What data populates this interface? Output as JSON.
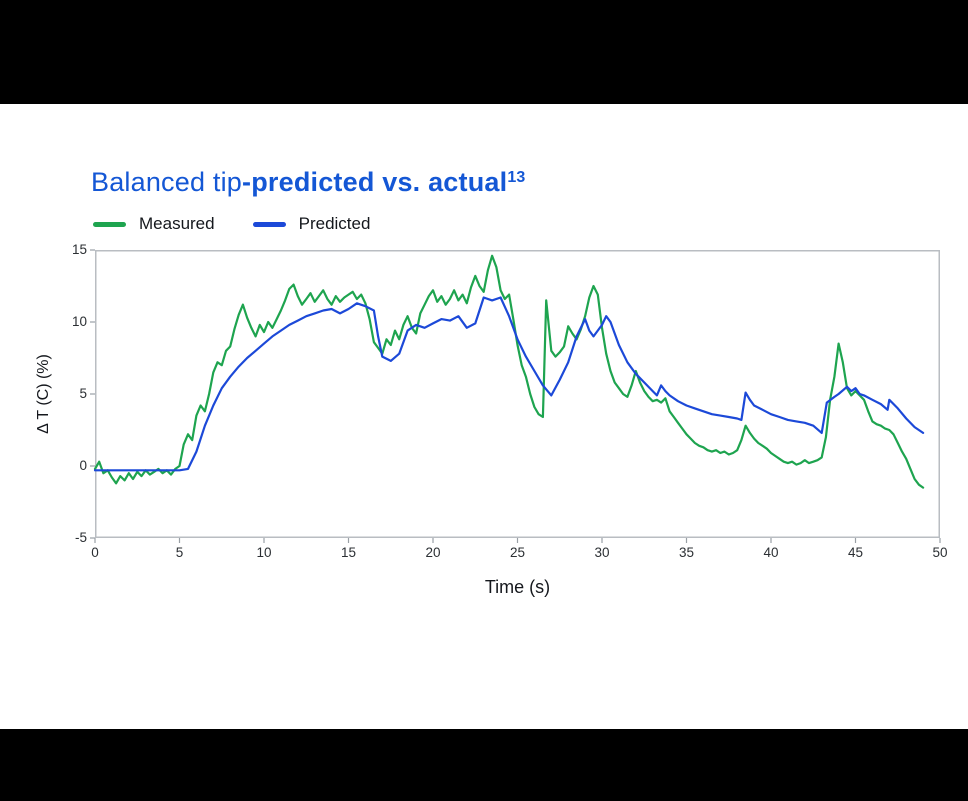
{
  "page": {
    "background": "#ffffff",
    "letterbox_color": "#000000"
  },
  "title": {
    "regular": "Balanced tip",
    "bold": "-predicted vs. actual",
    "superscript": "13",
    "color": "#1457d5"
  },
  "chart_data": {
    "type": "line",
    "title": "Balanced tip-predicted vs. actual13",
    "xlabel": "Time (s)",
    "ylabel": "Δ T (C) (%)",
    "xlim": [
      0,
      50
    ],
    "ylim": [
      -5,
      15
    ],
    "x_ticks": [
      0,
      5,
      10,
      15,
      20,
      25,
      30,
      35,
      40,
      45,
      50
    ],
    "y_ticks": [
      -5,
      0,
      5,
      10,
      15
    ],
    "grid": false,
    "legend_position": "top-left",
    "border_color": "#b9bdc2",
    "series": [
      {
        "name": "Measured",
        "color": "#1ea44f",
        "points": [
          [
            0,
            -0.2
          ],
          [
            0.25,
            0.3
          ],
          [
            0.5,
            -0.5
          ],
          [
            0.75,
            -0.3
          ],
          [
            1,
            -0.8
          ],
          [
            1.25,
            -1.2
          ],
          [
            1.5,
            -0.7
          ],
          [
            1.75,
            -1.0
          ],
          [
            2,
            -0.5
          ],
          [
            2.25,
            -0.9
          ],
          [
            2.5,
            -0.4
          ],
          [
            2.75,
            -0.7
          ],
          [
            3,
            -0.3
          ],
          [
            3.25,
            -0.6
          ],
          [
            3.5,
            -0.4
          ],
          [
            3.75,
            -0.2
          ],
          [
            4,
            -0.5
          ],
          [
            4.25,
            -0.3
          ],
          [
            4.5,
            -0.6
          ],
          [
            4.75,
            -0.2
          ],
          [
            5,
            0.0
          ],
          [
            5.25,
            1.5
          ],
          [
            5.5,
            2.2
          ],
          [
            5.75,
            1.8
          ],
          [
            6,
            3.5
          ],
          [
            6.25,
            4.2
          ],
          [
            6.5,
            3.8
          ],
          [
            6.75,
            5.0
          ],
          [
            7,
            6.5
          ],
          [
            7.25,
            7.2
          ],
          [
            7.5,
            7.0
          ],
          [
            7.75,
            8.0
          ],
          [
            8,
            8.3
          ],
          [
            8.25,
            9.5
          ],
          [
            8.5,
            10.5
          ],
          [
            8.75,
            11.2
          ],
          [
            9,
            10.3
          ],
          [
            9.25,
            9.6
          ],
          [
            9.5,
            9.0
          ],
          [
            9.75,
            9.8
          ],
          [
            10,
            9.3
          ],
          [
            10.25,
            10.0
          ],
          [
            10.5,
            9.6
          ],
          [
            10.75,
            10.2
          ],
          [
            11,
            10.8
          ],
          [
            11.25,
            11.5
          ],
          [
            11.5,
            12.3
          ],
          [
            11.75,
            12.6
          ],
          [
            12,
            11.8
          ],
          [
            12.25,
            11.2
          ],
          [
            12.5,
            11.6
          ],
          [
            12.75,
            12.0
          ],
          [
            13,
            11.4
          ],
          [
            13.25,
            11.8
          ],
          [
            13.5,
            12.2
          ],
          [
            13.75,
            11.6
          ],
          [
            14,
            11.2
          ],
          [
            14.25,
            11.8
          ],
          [
            14.5,
            11.4
          ],
          [
            14.75,
            11.7
          ],
          [
            15,
            11.9
          ],
          [
            15.25,
            12.1
          ],
          [
            15.5,
            11.6
          ],
          [
            15.75,
            11.9
          ],
          [
            16,
            11.3
          ],
          [
            16.25,
            10.2
          ],
          [
            16.5,
            8.6
          ],
          [
            16.75,
            8.2
          ],
          [
            17,
            7.8
          ],
          [
            17.25,
            8.8
          ],
          [
            17.5,
            8.4
          ],
          [
            17.75,
            9.4
          ],
          [
            18,
            8.8
          ],
          [
            18.25,
            9.8
          ],
          [
            18.5,
            10.4
          ],
          [
            18.75,
            9.6
          ],
          [
            19,
            9.2
          ],
          [
            19.25,
            10.6
          ],
          [
            19.5,
            11.2
          ],
          [
            19.75,
            11.8
          ],
          [
            20,
            12.2
          ],
          [
            20.25,
            11.4
          ],
          [
            20.5,
            11.8
          ],
          [
            20.75,
            11.2
          ],
          [
            21,
            11.6
          ],
          [
            21.25,
            12.2
          ],
          [
            21.5,
            11.5
          ],
          [
            21.75,
            11.9
          ],
          [
            22,
            11.3
          ],
          [
            22.25,
            12.4
          ],
          [
            22.5,
            13.2
          ],
          [
            22.75,
            12.5
          ],
          [
            23,
            12.1
          ],
          [
            23.25,
            13.6
          ],
          [
            23.5,
            14.6
          ],
          [
            23.75,
            13.8
          ],
          [
            24,
            12.2
          ],
          [
            24.25,
            11.6
          ],
          [
            24.5,
            11.9
          ],
          [
            24.75,
            10.2
          ],
          [
            25,
            8.4
          ],
          [
            25.25,
            7.0
          ],
          [
            25.5,
            6.2
          ],
          [
            25.75,
            5.0
          ],
          [
            26,
            4.1
          ],
          [
            26.25,
            3.6
          ],
          [
            26.5,
            3.4
          ],
          [
            26.7,
            11.5
          ],
          [
            27,
            8.0
          ],
          [
            27.25,
            7.6
          ],
          [
            27.5,
            7.9
          ],
          [
            27.75,
            8.3
          ],
          [
            28,
            9.7
          ],
          [
            28.25,
            9.2
          ],
          [
            28.5,
            8.8
          ],
          [
            28.75,
            9.5
          ],
          [
            29,
            10.4
          ],
          [
            29.25,
            11.7
          ],
          [
            29.5,
            12.5
          ],
          [
            29.75,
            11.9
          ],
          [
            30,
            9.6
          ],
          [
            30.25,
            7.8
          ],
          [
            30.5,
            6.6
          ],
          [
            30.75,
            5.8
          ],
          [
            31,
            5.4
          ],
          [
            31.25,
            5.0
          ],
          [
            31.5,
            4.8
          ],
          [
            31.75,
            5.6
          ],
          [
            32,
            6.6
          ],
          [
            32.25,
            5.8
          ],
          [
            32.5,
            5.2
          ],
          [
            32.75,
            4.8
          ],
          [
            33,
            4.5
          ],
          [
            33.25,
            4.6
          ],
          [
            33.5,
            4.4
          ],
          [
            33.75,
            4.7
          ],
          [
            34,
            3.8
          ],
          [
            34.25,
            3.4
          ],
          [
            34.5,
            3.0
          ],
          [
            34.75,
            2.6
          ],
          [
            35,
            2.2
          ],
          [
            35.25,
            1.9
          ],
          [
            35.5,
            1.6
          ],
          [
            35.75,
            1.4
          ],
          [
            36,
            1.3
          ],
          [
            36.25,
            1.1
          ],
          [
            36.5,
            1.0
          ],
          [
            36.75,
            1.1
          ],
          [
            37,
            0.9
          ],
          [
            37.25,
            1.0
          ],
          [
            37.5,
            0.8
          ],
          [
            37.75,
            0.9
          ],
          [
            38,
            1.1
          ],
          [
            38.25,
            1.8
          ],
          [
            38.5,
            2.8
          ],
          [
            38.75,
            2.3
          ],
          [
            39,
            1.9
          ],
          [
            39.25,
            1.6
          ],
          [
            39.5,
            1.4
          ],
          [
            39.75,
            1.2
          ],
          [
            40,
            0.9
          ],
          [
            40.25,
            0.7
          ],
          [
            40.5,
            0.5
          ],
          [
            40.75,
            0.3
          ],
          [
            41,
            0.2
          ],
          [
            41.25,
            0.3
          ],
          [
            41.5,
            0.1
          ],
          [
            41.75,
            0.2
          ],
          [
            42,
            0.4
          ],
          [
            42.25,
            0.2
          ],
          [
            42.5,
            0.3
          ],
          [
            42.75,
            0.4
          ],
          [
            43,
            0.6
          ],
          [
            43.25,
            2.0
          ],
          [
            43.5,
            4.6
          ],
          [
            43.75,
            6.2
          ],
          [
            44,
            8.5
          ],
          [
            44.25,
            7.2
          ],
          [
            44.5,
            5.4
          ],
          [
            44.75,
            4.9
          ],
          [
            45,
            5.2
          ],
          [
            45.25,
            4.9
          ],
          [
            45.5,
            4.6
          ],
          [
            45.75,
            3.8
          ],
          [
            46,
            3.1
          ],
          [
            46.25,
            2.9
          ],
          [
            46.5,
            2.8
          ],
          [
            46.75,
            2.6
          ],
          [
            47,
            2.5
          ],
          [
            47.25,
            2.2
          ],
          [
            47.5,
            1.6
          ],
          [
            47.75,
            1.0
          ],
          [
            48,
            0.5
          ],
          [
            48.25,
            -0.2
          ],
          [
            48.5,
            -0.9
          ],
          [
            48.75,
            -1.3
          ],
          [
            49,
            -1.5
          ]
        ]
      },
      {
        "name": "Predicted",
        "color": "#1c49d8",
        "points": [
          [
            0,
            -0.3
          ],
          [
            1,
            -0.3
          ],
          [
            2,
            -0.3
          ],
          [
            3,
            -0.3
          ],
          [
            4,
            -0.3
          ],
          [
            5,
            -0.3
          ],
          [
            5.5,
            -0.2
          ],
          [
            6,
            1.0
          ],
          [
            6.5,
            2.8
          ],
          [
            7,
            4.2
          ],
          [
            7.5,
            5.4
          ],
          [
            8,
            6.2
          ],
          [
            8.5,
            6.9
          ],
          [
            9,
            7.5
          ],
          [
            9.5,
            8.0
          ],
          [
            10,
            8.5
          ],
          [
            10.5,
            9.0
          ],
          [
            11,
            9.4
          ],
          [
            11.5,
            9.8
          ],
          [
            12,
            10.1
          ],
          [
            12.5,
            10.4
          ],
          [
            13,
            10.6
          ],
          [
            13.5,
            10.8
          ],
          [
            14,
            10.9
          ],
          [
            14.5,
            10.6
          ],
          [
            15,
            10.9
          ],
          [
            15.5,
            11.3
          ],
          [
            16,
            11.1
          ],
          [
            16.5,
            10.8
          ],
          [
            16.75,
            9.0
          ],
          [
            17,
            7.6
          ],
          [
            17.5,
            7.3
          ],
          [
            18,
            7.8
          ],
          [
            18.5,
            9.4
          ],
          [
            19,
            9.8
          ],
          [
            19.5,
            9.6
          ],
          [
            20,
            9.9
          ],
          [
            20.5,
            10.2
          ],
          [
            21,
            10.1
          ],
          [
            21.5,
            10.4
          ],
          [
            22,
            9.6
          ],
          [
            22.5,
            9.9
          ],
          [
            23,
            11.7
          ],
          [
            23.5,
            11.5
          ],
          [
            24,
            11.7
          ],
          [
            24.5,
            10.4
          ],
          [
            25,
            8.8
          ],
          [
            25.5,
            7.6
          ],
          [
            26,
            6.6
          ],
          [
            26.5,
            5.6
          ],
          [
            27,
            4.9
          ],
          [
            27.5,
            6.0
          ],
          [
            28,
            7.2
          ],
          [
            28.5,
            9.0
          ],
          [
            29,
            10.2
          ],
          [
            29.25,
            9.4
          ],
          [
            29.5,
            9.0
          ],
          [
            30,
            9.8
          ],
          [
            30.25,
            10.4
          ],
          [
            30.5,
            10.0
          ],
          [
            31,
            8.4
          ],
          [
            31.5,
            7.2
          ],
          [
            32,
            6.4
          ],
          [
            32.5,
            5.8
          ],
          [
            33,
            5.2
          ],
          [
            33.25,
            4.9
          ],
          [
            33.5,
            5.6
          ],
          [
            33.75,
            5.2
          ],
          [
            34,
            4.9
          ],
          [
            34.5,
            4.5
          ],
          [
            35,
            4.2
          ],
          [
            35.5,
            4.0
          ],
          [
            36,
            3.8
          ],
          [
            36.5,
            3.6
          ],
          [
            37,
            3.5
          ],
          [
            37.5,
            3.4
          ],
          [
            38,
            3.3
          ],
          [
            38.25,
            3.2
          ],
          [
            38.5,
            5.1
          ],
          [
            38.75,
            4.6
          ],
          [
            39,
            4.2
          ],
          [
            39.5,
            3.9
          ],
          [
            40,
            3.6
          ],
          [
            40.5,
            3.4
          ],
          [
            41,
            3.2
          ],
          [
            41.5,
            3.1
          ],
          [
            42,
            3.0
          ],
          [
            42.5,
            2.8
          ],
          [
            43,
            2.3
          ],
          [
            43.3,
            4.4
          ],
          [
            43.75,
            4.8
          ],
          [
            44,
            5.0
          ],
          [
            44.5,
            5.5
          ],
          [
            44.75,
            5.2
          ],
          [
            45,
            5.4
          ],
          [
            45.25,
            5.0
          ],
          [
            45.5,
            4.9
          ],
          [
            46,
            4.6
          ],
          [
            46.5,
            4.3
          ],
          [
            46.9,
            3.9
          ],
          [
            47,
            4.6
          ],
          [
            47.5,
            4.0
          ],
          [
            48,
            3.3
          ],
          [
            48.5,
            2.7
          ],
          [
            49,
            2.3
          ]
        ]
      }
    ]
  }
}
